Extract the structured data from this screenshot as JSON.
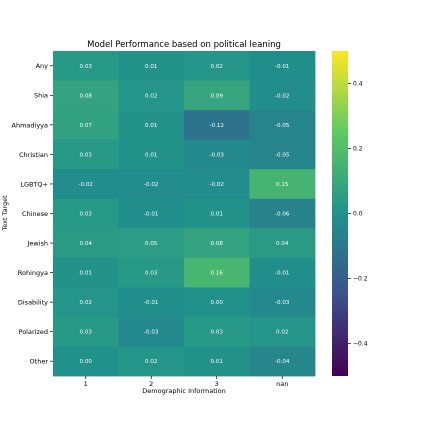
{
  "chart_data": {
    "type": "heatmap",
    "title": "Model Performance based on political leaning",
    "xlabel": "Demographic Information",
    "ylabel": "Text Target",
    "x_categories": [
      "1",
      "2",
      "3",
      "nan"
    ],
    "y_categories": [
      "Any",
      "Shia",
      "Ahmadiyya",
      "Christian",
      "LGBTQ+",
      "Chinese",
      "Jewish",
      "Rohingya",
      "Disability",
      "Polarized",
      "Other"
    ],
    "values": [
      [
        0.03,
        0.01,
        0.02,
        -0.01
      ],
      [
        0.08,
        0.02,
        0.09,
        -0.02
      ],
      [
        0.07,
        0.01,
        -0.12,
        -0.05
      ],
      [
        0.03,
        0.01,
        -0.03,
        -0.05
      ],
      [
        -0.02,
        -0.02,
        -0.02,
        0.15
      ],
      [
        0.03,
        -0.01,
        0.01,
        -0.06
      ],
      [
        0.04,
        0.05,
        0.08,
        0.04
      ],
      [
        0.01,
        0.03,
        0.16,
        -0.01
      ],
      [
        0.02,
        -0.01,
        0.0,
        -0.03
      ],
      [
        0.03,
        -0.03,
        0.03,
        0.02
      ],
      [
        0.0,
        0.02,
        0.01,
        -0.04
      ]
    ],
    "cell_labels": [
      [
        "0.03",
        "0.01",
        "0.02",
        "-0.01"
      ],
      [
        "0.08",
        "0.02",
        "0.09",
        "-0.02"
      ],
      [
        "0.07",
        "0.01",
        "-0.12",
        "-0.05"
      ],
      [
        "0.03",
        "0.01",
        "-0.03",
        "-0.05"
      ],
      [
        "-0.02",
        "-0.02",
        "-0.02",
        "0.15"
      ],
      [
        "0.03",
        "-0.01",
        "0.01",
        "-0.06"
      ],
      [
        "0.04",
        "0.05",
        "0.08",
        "0.04"
      ],
      [
        "0.01",
        "0.03",
        "0.16",
        "-0.01"
      ],
      [
        "0.02",
        "-0.01",
        "0.00",
        "-0.03"
      ],
      [
        "0.03",
        "-0.03",
        "0.03",
        "0.02"
      ],
      [
        "0.00",
        "0.02",
        "0.01",
        "-0.04"
      ]
    ],
    "colormap": "viridis",
    "vmin": -0.5,
    "vmax": 0.5,
    "colorbar_ticks": [
      0.4,
      0.2,
      0.0,
      -0.2,
      -0.4
    ],
    "colorbar_tick_labels": [
      "0.4",
      "0.2",
      "0.0",
      "−0.2",
      "−0.4"
    ],
    "grid": false
  }
}
